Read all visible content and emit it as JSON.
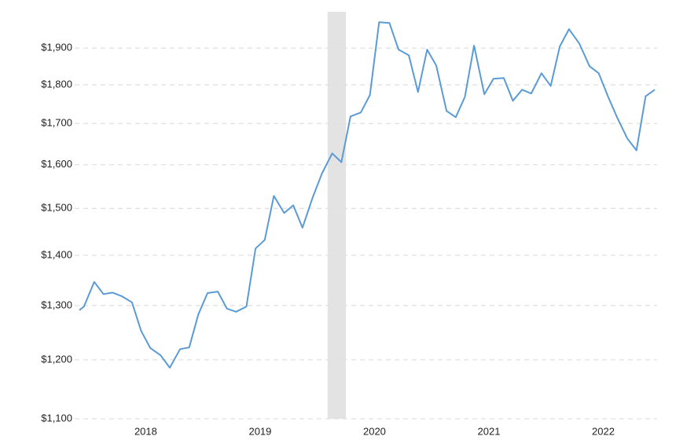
{
  "chart_data": {
    "type": "line",
    "log_scale": true,
    "grid": true,
    "x": [
      2017.42,
      2017.46,
      2017.55,
      2017.63,
      2017.71,
      2017.79,
      2017.88,
      2017.96,
      2018.04,
      2018.13,
      2018.21,
      2018.3,
      2018.38,
      2018.46,
      2018.54,
      2018.63,
      2018.71,
      2018.79,
      2018.88,
      2018.96,
      2019.04,
      2019.12,
      2019.21,
      2019.29,
      2019.37,
      2019.46,
      2019.54,
      2019.63,
      2019.71,
      2019.79,
      2019.88,
      2019.96,
      2020.04,
      2020.13,
      2020.21,
      2020.3,
      2020.38,
      2020.46,
      2020.54,
      2020.63,
      2020.71,
      2020.79,
      2020.87,
      2020.96,
      2021.04,
      2021.13,
      2021.21,
      2021.29,
      2021.37,
      2021.46,
      2021.54,
      2021.62,
      2021.7,
      2021.79,
      2021.88,
      2021.96,
      2022.04,
      2022.12,
      2022.21,
      2022.29,
      2022.37,
      2022.45
    ],
    "series": [
      {
        "color": "#5b9bd5",
        "values": [
          1291,
          1298,
          1346,
          1322,
          1325,
          1318,
          1306,
          1252,
          1221,
          1208,
          1186,
          1219,
          1222,
          1283,
          1324,
          1327,
          1294,
          1288,
          1298,
          1414,
          1432,
          1528,
          1490,
          1507,
          1458,
          1525,
          1579,
          1627,
          1606,
          1718,
          1728,
          1773,
          1974,
          1972,
          1896,
          1880,
          1781,
          1896,
          1852,
          1732,
          1716,
          1768,
          1907,
          1775,
          1816,
          1818,
          1758,
          1787,
          1777,
          1831,
          1797,
          1905,
          1954,
          1913,
          1850,
          1831,
          1770,
          1716,
          1663,
          1634,
          1770,
          1787
        ]
      }
    ],
    "xlim": [
      2017.42,
      2022.45
    ],
    "xticks": [
      2018,
      2019,
      2020,
      2021,
      2022
    ],
    "ylim": [
      1100,
      2000
    ],
    "yticks": [
      {
        "value": 1100,
        "label": "$1,100"
      },
      {
        "value": 1200,
        "label": "$1,200"
      },
      {
        "value": 1300,
        "label": "$1,300"
      },
      {
        "value": 1400,
        "label": "$1,400"
      },
      {
        "value": 1500,
        "label": "$1,500"
      },
      {
        "value": 1600,
        "label": "$1,600"
      },
      {
        "value": 1700,
        "label": "$1,700"
      },
      {
        "value": 1800,
        "label": "$1,800"
      },
      {
        "value": 1900,
        "label": "$1,900"
      }
    ],
    "shaded_regions": [
      {
        "start": 2019.59,
        "end": 2019.75,
        "color": "#e3e3e3"
      }
    ]
  }
}
